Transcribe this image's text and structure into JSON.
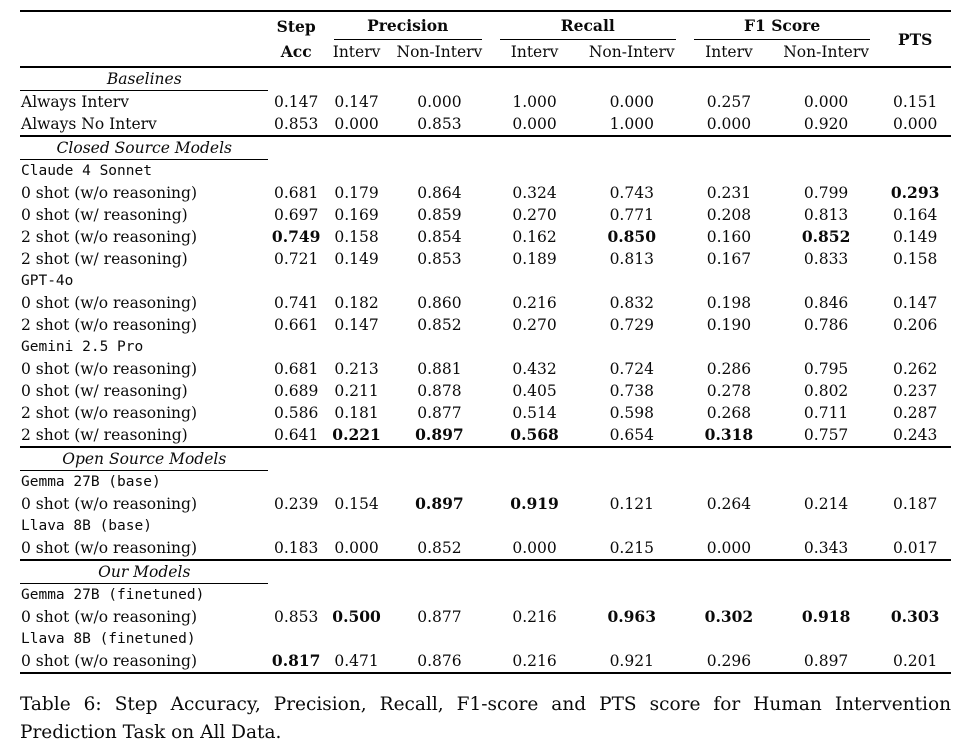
{
  "colors": {
    "text": "#0a0a0a",
    "background": "#ffffff",
    "rule": "#000000"
  },
  "caption": "Table 6: Step Accuracy, Precision, Recall, F1-score and PTS score for Human Intervention Prediction Task on All Data.",
  "table": {
    "header": {
      "step": [
        "Step",
        "Acc"
      ],
      "groups": [
        "Precision",
        "Recall",
        "F1 Score"
      ],
      "sub": [
        "Interv",
        "Non-Interv",
        "Interv",
        "Non-Interv",
        "Interv",
        "Non-Interv"
      ],
      "pts": "PTS"
    },
    "columns": [
      "",
      "Step Acc",
      "Precision Interv",
      "Precision Non-Interv",
      "Recall Interv",
      "Recall Non-Interv",
      "F1 Interv",
      "F1 Non-Interv",
      "PTS"
    ],
    "rows": [
      {
        "type": "section",
        "label": "Baselines",
        "rule_above": false
      },
      {
        "type": "data",
        "label": "Always Interv",
        "values": [
          "0.147",
          "0.147",
          "0.000",
          "1.000",
          "0.000",
          "0.257",
          "0.000",
          "0.151"
        ],
        "bold": []
      },
      {
        "type": "data",
        "label": "Always No Interv",
        "values": [
          "0.853",
          "0.000",
          "0.853",
          "0.000",
          "1.000",
          "0.000",
          "0.920",
          "0.000"
        ],
        "bold": []
      },
      {
        "type": "section",
        "label": "Closed Source Models",
        "rule_above": true
      },
      {
        "type": "model",
        "label": "Claude 4 Sonnet"
      },
      {
        "type": "data",
        "label": "0 shot (w/o reasoning)",
        "values": [
          "0.681",
          "0.179",
          "0.864",
          "0.324",
          "0.743",
          "0.231",
          "0.799",
          "0.293"
        ],
        "bold": [
          7
        ]
      },
      {
        "type": "data",
        "label": "0 shot (w/ reasoning)",
        "values": [
          "0.697",
          "0.169",
          "0.859",
          "0.270",
          "0.771",
          "0.208",
          "0.813",
          "0.164"
        ],
        "bold": []
      },
      {
        "type": "data",
        "label": "2 shot (w/o reasoning)",
        "values": [
          "0.749",
          "0.158",
          "0.854",
          "0.162",
          "0.850",
          "0.160",
          "0.852",
          "0.149"
        ],
        "bold": [
          0,
          4,
          6
        ]
      },
      {
        "type": "data",
        "label": "2 shot (w/ reasoning)",
        "values": [
          "0.721",
          "0.149",
          "0.853",
          "0.189",
          "0.813",
          "0.167",
          "0.833",
          "0.158"
        ],
        "bold": []
      },
      {
        "type": "model",
        "label": "GPT-4o"
      },
      {
        "type": "data",
        "label": "0 shot (w/o reasoning)",
        "values": [
          "0.741",
          "0.182",
          "0.860",
          "0.216",
          "0.832",
          "0.198",
          "0.846",
          "0.147"
        ],
        "bold": []
      },
      {
        "type": "data",
        "label": "2 shot (w/o reasoning)",
        "values": [
          "0.661",
          "0.147",
          "0.852",
          "0.270",
          "0.729",
          "0.190",
          "0.786",
          "0.206"
        ],
        "bold": []
      },
      {
        "type": "model",
        "label": "Gemini 2.5 Pro"
      },
      {
        "type": "data",
        "label": "0 shot (w/o reasoning)",
        "values": [
          "0.681",
          "0.213",
          "0.881",
          "0.432",
          "0.724",
          "0.286",
          "0.795",
          "0.262"
        ],
        "bold": []
      },
      {
        "type": "data",
        "label": "0 shot (w/ reasoning)",
        "values": [
          "0.689",
          "0.211",
          "0.878",
          "0.405",
          "0.738",
          "0.278",
          "0.802",
          "0.237"
        ],
        "bold": []
      },
      {
        "type": "data",
        "label": "2 shot (w/o reasoning)",
        "values": [
          "0.586",
          "0.181",
          "0.877",
          "0.514",
          "0.598",
          "0.268",
          "0.711",
          "0.287"
        ],
        "bold": []
      },
      {
        "type": "data",
        "label": "2 shot (w/ reasoning)",
        "values": [
          "0.641",
          "0.221",
          "0.897",
          "0.568",
          "0.654",
          "0.318",
          "0.757",
          "0.243"
        ],
        "bold": [
          1,
          2,
          3,
          5
        ]
      },
      {
        "type": "section",
        "label": "Open Source Models",
        "rule_above": true
      },
      {
        "type": "model",
        "label": "Gemma 27B (base)"
      },
      {
        "type": "data",
        "label": "0 shot (w/o reasoning)",
        "values": [
          "0.239",
          "0.154",
          "0.897",
          "0.919",
          "0.121",
          "0.264",
          "0.214",
          "0.187"
        ],
        "bold": [
          2,
          3
        ]
      },
      {
        "type": "model",
        "label": "Llava 8B (base)"
      },
      {
        "type": "data",
        "label": "0 shot (w/o reasoning)",
        "values": [
          "0.183",
          "0.000",
          "0.852",
          "0.000",
          "0.215",
          "0.000",
          "0.343",
          "0.017"
        ],
        "bold": []
      },
      {
        "type": "section",
        "label": "Our Models",
        "rule_above": true
      },
      {
        "type": "model",
        "label": "Gemma 27B (finetuned)"
      },
      {
        "type": "data",
        "label": "0 shot (w/o reasoning)",
        "values": [
          "0.853",
          "0.500",
          "0.877",
          "0.216",
          "0.963",
          "0.302",
          "0.918",
          "0.303"
        ],
        "bold": [
          1,
          4,
          5,
          6,
          7
        ]
      },
      {
        "type": "model",
        "label": "Llava 8B (finetuned)"
      },
      {
        "type": "data",
        "label": "0 shot (w/o reasoning)",
        "values": [
          "0.817",
          "0.471",
          "0.876",
          "0.216",
          "0.921",
          "0.296",
          "0.897",
          "0.201"
        ],
        "bold": [
          0
        ]
      }
    ]
  }
}
